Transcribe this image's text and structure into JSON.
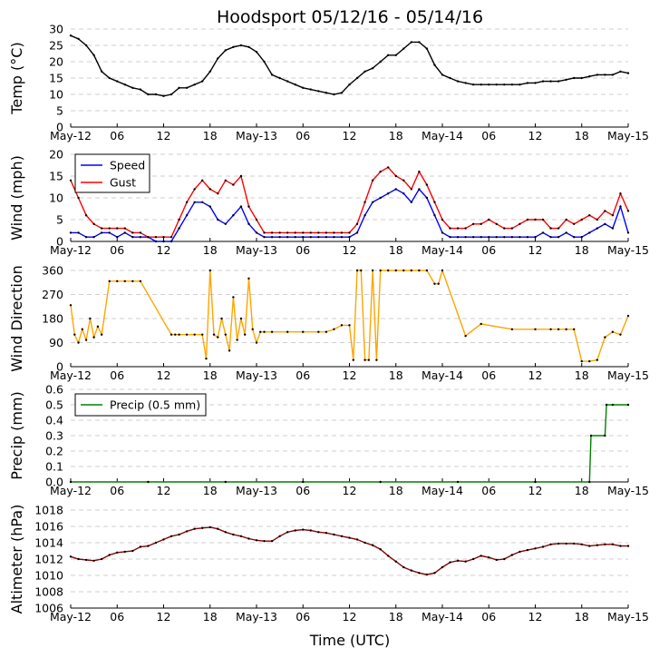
{
  "figure": {
    "title": "Hoodsport 05/12/16 - 05/14/16",
    "xlabel": "Time (UTC)"
  },
  "x_ticks": [
    "May-12",
    "06",
    "12",
    "18",
    "May-13",
    "06",
    "12",
    "18",
    "May-14",
    "06",
    "12",
    "18",
    "May-15"
  ],
  "chart_data": [
    {
      "type": "line",
      "ylabel": "Temp (°C)",
      "ylim": [
        0,
        30
      ],
      "yticks": [
        0,
        5,
        10,
        15,
        20,
        25,
        30
      ],
      "grid": "horizontal dashed",
      "series": [
        {
          "color": "#000000",
          "x": [
            0,
            1,
            2,
            3,
            4,
            5,
            6,
            7,
            8,
            9,
            10,
            11,
            12,
            13,
            14,
            15,
            16,
            17,
            18,
            19,
            20,
            21,
            22,
            23,
            24,
            25,
            26,
            27,
            28,
            29,
            30,
            31,
            32,
            33,
            34,
            35,
            36,
            37,
            38,
            39,
            40,
            41,
            42,
            43,
            44,
            45,
            46,
            47,
            48,
            49,
            50,
            51,
            52,
            53,
            54,
            55,
            56,
            57,
            58,
            59,
            60,
            61,
            62,
            63,
            64,
            65,
            66,
            67,
            68,
            69,
            70,
            71,
            72
          ],
          "y": [
            28,
            27,
            25,
            22,
            17,
            15,
            14,
            13,
            12,
            11.5,
            10,
            10,
            9.5,
            10,
            12,
            12,
            13,
            14,
            17,
            21,
            23.5,
            24.5,
            25,
            24.5,
            23,
            20,
            16,
            15,
            14,
            13,
            12,
            11.5,
            11,
            10.5,
            10,
            10.5,
            13,
            15,
            17,
            18,
            20,
            22,
            22,
            24,
            26,
            26,
            24,
            19,
            16,
            15,
            14,
            13.5,
            13,
            13,
            13,
            13,
            13,
            13,
            13,
            13.5,
            13.5,
            14,
            14,
            14,
            14.5,
            15,
            15,
            15.5,
            16,
            16,
            16,
            17,
            16.5
          ]
        }
      ]
    },
    {
      "type": "line",
      "ylabel": "Wind (mph)",
      "ylim": [
        0,
        20
      ],
      "yticks": [
        0,
        5,
        10,
        15,
        20
      ],
      "grid": "horizontal dashed",
      "legend": {
        "placement": "upper-left"
      },
      "series": [
        {
          "name": "Speed",
          "color": "#0000ff",
          "x": [
            0,
            1,
            2,
            3,
            4,
            5,
            6,
            7,
            8,
            9,
            10,
            11,
            12,
            13,
            14,
            15,
            16,
            17,
            18,
            19,
            20,
            21,
            22,
            23,
            24,
            25,
            26,
            27,
            28,
            29,
            30,
            31,
            32,
            33,
            34,
            35,
            36,
            37,
            38,
            39,
            40,
            41,
            42,
            43,
            44,
            45,
            46,
            47,
            48,
            49,
            50,
            51,
            52,
            53,
            54,
            55,
            56,
            57,
            58,
            59,
            60,
            61,
            62,
            63,
            64,
            65,
            66,
            67,
            68,
            69,
            70,
            71,
            72
          ],
          "y": [
            2,
            2,
            1,
            1,
            2,
            2,
            1,
            2,
            1,
            1,
            1,
            0,
            0,
            0,
            3,
            6,
            9,
            9,
            8,
            5,
            4,
            6,
            8,
            4,
            2,
            1,
            1,
            1,
            1,
            1,
            1,
            1,
            1,
            1,
            1,
            1,
            1,
            2,
            6,
            9,
            10,
            11,
            12,
            11,
            9,
            12,
            10,
            6,
            2,
            1,
            1,
            1,
            1,
            1,
            1,
            1,
            1,
            1,
            1,
            1,
            1,
            2,
            1,
            1,
            2,
            1,
            1,
            2,
            3,
            4,
            3,
            8,
            2
          ]
        },
        {
          "name": "Gust",
          "color": "#ff0000",
          "x": [
            0,
            1,
            2,
            3,
            4,
            5,
            6,
            7,
            8,
            9,
            10,
            11,
            12,
            13,
            14,
            15,
            16,
            17,
            18,
            19,
            20,
            21,
            22,
            23,
            24,
            25,
            26,
            27,
            28,
            29,
            30,
            31,
            32,
            33,
            34,
            35,
            36,
            37,
            38,
            39,
            40,
            41,
            42,
            43,
            44,
            45,
            46,
            47,
            48,
            49,
            50,
            51,
            52,
            53,
            54,
            55,
            56,
            57,
            58,
            59,
            60,
            61,
            62,
            63,
            64,
            65,
            66,
            67,
            68,
            69,
            70,
            71,
            72
          ],
          "y": [
            14,
            10,
            6,
            4,
            3,
            3,
            3,
            3,
            2,
            2,
            1,
            1,
            1,
            1,
            5,
            9,
            12,
            14,
            12,
            11,
            14,
            13,
            15,
            8,
            5,
            2,
            2,
            2,
            2,
            2,
            2,
            2,
            2,
            2,
            2,
            2,
            2,
            4,
            9,
            14,
            16,
            17,
            15,
            14,
            12,
            16,
            13,
            9,
            5,
            3,
            3,
            3,
            4,
            4,
            5,
            4,
            3,
            3,
            4,
            5,
            5,
            5,
            3,
            3,
            5,
            4,
            5,
            6,
            5,
            7,
            6,
            11,
            7
          ]
        }
      ]
    },
    {
      "type": "line",
      "ylabel": "Wind Direction",
      "ylim": [
        0,
        360
      ],
      "yticks": [
        0,
        90,
        180,
        270,
        360
      ],
      "grid": "horizontal dashed",
      "series": [
        {
          "color": "#ffa500",
          "x": [
            0,
            0.5,
            1,
            1.5,
            2,
            2.5,
            3,
            3.5,
            4,
            5,
            6,
            7,
            8,
            9,
            13,
            13.5,
            14,
            15,
            16,
            17,
            17.5,
            18,
            18.5,
            19,
            19.5,
            20,
            20.5,
            21,
            21.5,
            22,
            22.5,
            23,
            23.5,
            24,
            24.5,
            25,
            26,
            28,
            30,
            32,
            33,
            34,
            35,
            36,
            36.5,
            37,
            37.5,
            38,
            38.5,
            39,
            39.5,
            40,
            41,
            42,
            43,
            44,
            45,
            46,
            47,
            47.5,
            48,
            51,
            53,
            57,
            60,
            62,
            63,
            64,
            65,
            66,
            67,
            68,
            69,
            70,
            71,
            72
          ],
          "y": [
            230,
            120,
            90,
            140,
            100,
            180,
            110,
            150,
            120,
            320,
            320,
            320,
            320,
            320,
            120,
            120,
            120,
            120,
            120,
            120,
            30,
            360,
            120,
            110,
            180,
            120,
            60,
            260,
            100,
            180,
            120,
            330,
            140,
            90,
            130,
            130,
            130,
            130,
            130,
            130,
            130,
            140,
            155,
            155,
            25,
            360,
            360,
            25,
            25,
            360,
            25,
            360,
            360,
            360,
            360,
            360,
            360,
            360,
            310,
            310,
            360,
            115,
            160,
            140,
            140,
            140,
            140,
            140,
            140,
            20,
            20,
            25,
            110,
            130,
            120,
            190
          ]
        }
      ]
    },
    {
      "type": "line",
      "ylabel": "Precip (mm)",
      "ylim": [
        0,
        0.6
      ],
      "yticks": [
        0.0,
        0.1,
        0.2,
        0.3,
        0.4,
        0.5,
        0.6
      ],
      "grid": "horizontal dashed",
      "legend": {
        "placement": "upper-left"
      },
      "series": [
        {
          "name": "Precip (0.5 mm)",
          "color": "#008000",
          "x": [
            0,
            10,
            20,
            30,
            40,
            50,
            60,
            67,
            67.2,
            69,
            69.2,
            70,
            72
          ],
          "y": [
            0,
            0,
            0,
            0,
            0,
            0,
            0,
            0,
            0.3,
            0.3,
            0.5,
            0.5,
            0.5
          ]
        }
      ]
    },
    {
      "type": "line",
      "ylabel": "Altimeter (hPa)",
      "ylim": [
        1006,
        1018
      ],
      "yticks": [
        1006,
        1008,
        1010,
        1012,
        1014,
        1016,
        1018
      ],
      "grid": "horizontal dashed",
      "series": [
        {
          "color": "#8b0000",
          "x": [
            0,
            1,
            2,
            3,
            4,
            5,
            6,
            7,
            8,
            9,
            10,
            11,
            12,
            13,
            14,
            15,
            16,
            17,
            18,
            19,
            20,
            21,
            22,
            23,
            24,
            25,
            26,
            27,
            28,
            29,
            30,
            31,
            32,
            33,
            34,
            35,
            36,
            37,
            38,
            39,
            40,
            41,
            42,
            43,
            44,
            45,
            46,
            47,
            48,
            49,
            50,
            51,
            52,
            53,
            54,
            55,
            56,
            57,
            58,
            59,
            60,
            61,
            62,
            63,
            64,
            65,
            66,
            67,
            68,
            69,
            70,
            71,
            72
          ],
          "y": [
            1012.3,
            1012,
            1011.9,
            1011.8,
            1012,
            1012.5,
            1012.8,
            1012.9,
            1013,
            1013.5,
            1013.6,
            1014,
            1014.4,
            1014.8,
            1015,
            1015.4,
            1015.7,
            1015.8,
            1015.9,
            1015.7,
            1015.3,
            1015,
            1014.8,
            1014.5,
            1014.3,
            1014.2,
            1014.2,
            1014.8,
            1015.3,
            1015.5,
            1015.6,
            1015.5,
            1015.3,
            1015.2,
            1015,
            1014.8,
            1014.6,
            1014.4,
            1014,
            1013.7,
            1013.2,
            1012.4,
            1011.7,
            1011,
            1010.6,
            1010.3,
            1010.1,
            1010.3,
            1011,
            1011.6,
            1011.8,
            1011.7,
            1012,
            1012.4,
            1012.2,
            1011.9,
            1012,
            1012.5,
            1012.9,
            1013.1,
            1013.3,
            1013.5,
            1013.8,
            1013.9,
            1013.9,
            1013.9,
            1013.8,
            1013.6,
            1013.7,
            1013.8,
            1013.8,
            1013.6,
            1013.6
          ]
        }
      ]
    }
  ]
}
